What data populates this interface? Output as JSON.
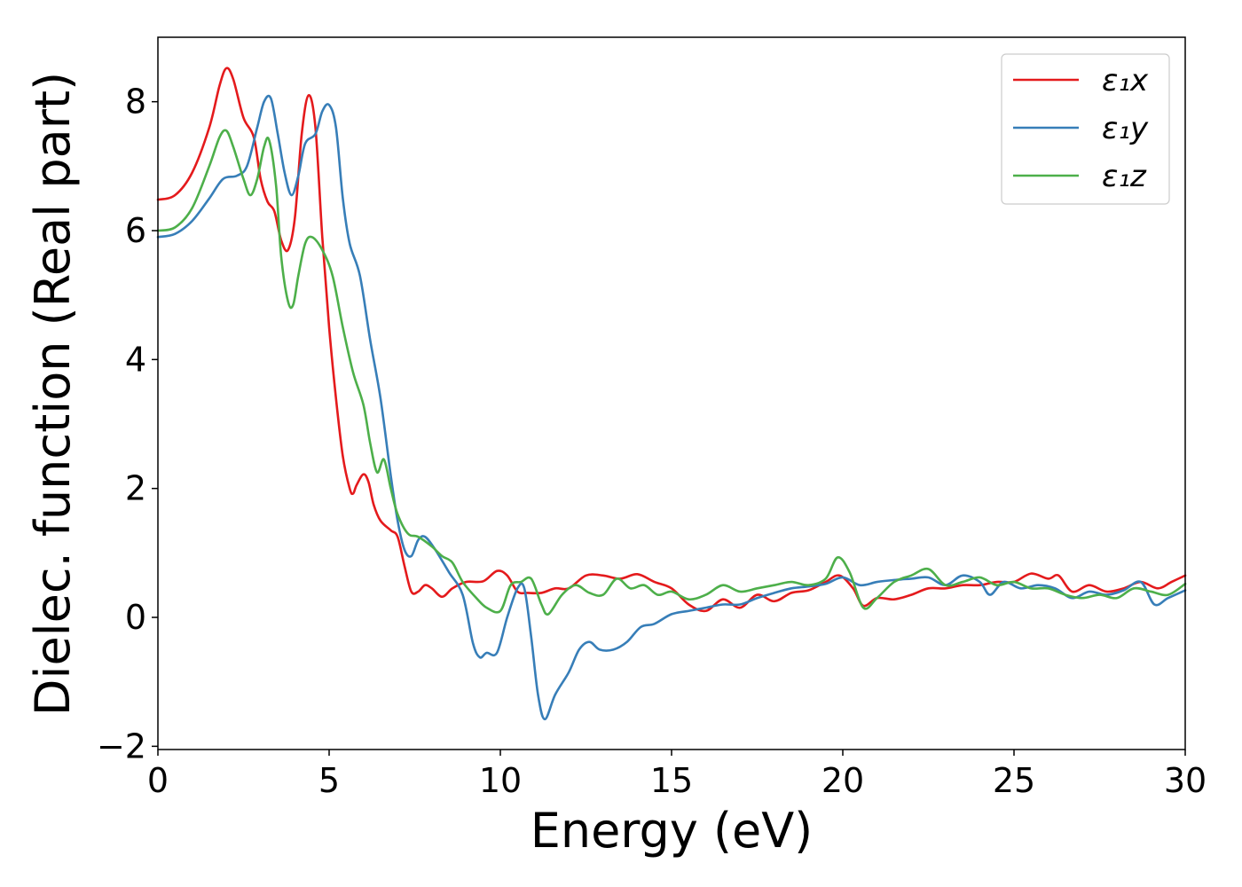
{
  "chart_data": {
    "type": "line",
    "xlabel": "Energy (eV)",
    "ylabel": "Dielec. function (Real part)",
    "xlim": [
      0,
      30
    ],
    "ylim": [
      -2.05,
      9.0
    ],
    "xticks": [
      0,
      5,
      10,
      15,
      20,
      25,
      30
    ],
    "xtick_labels": [
      "0",
      "5",
      "10",
      "15",
      "20",
      "25",
      "30"
    ],
    "yticks": [
      -2,
      0,
      2,
      4,
      6,
      8
    ],
    "ytick_labels": [
      "−2",
      "0",
      "2",
      "4",
      "6",
      "8"
    ],
    "grid": false,
    "legend_position": "top-right",
    "series": [
      {
        "name": "ε₁x",
        "color": "#e41a1c",
        "points": [
          [
            0,
            6.48
          ],
          [
            0.5,
            6.55
          ],
          [
            1.0,
            6.9
          ],
          [
            1.5,
            7.6
          ],
          [
            1.8,
            8.25
          ],
          [
            2.0,
            8.52
          ],
          [
            2.2,
            8.35
          ],
          [
            2.5,
            7.75
          ],
          [
            2.8,
            7.45
          ],
          [
            3.0,
            6.8
          ],
          [
            3.2,
            6.45
          ],
          [
            3.4,
            6.3
          ],
          [
            3.6,
            5.85
          ],
          [
            3.8,
            5.7
          ],
          [
            4.0,
            6.2
          ],
          [
            4.2,
            7.5
          ],
          [
            4.4,
            8.1
          ],
          [
            4.6,
            7.6
          ],
          [
            4.8,
            5.9
          ],
          [
            5.0,
            4.5
          ],
          [
            5.2,
            3.4
          ],
          [
            5.4,
            2.5
          ],
          [
            5.6,
            2.0
          ],
          [
            5.7,
            1.92
          ],
          [
            5.8,
            2.05
          ],
          [
            6.0,
            2.22
          ],
          [
            6.15,
            2.1
          ],
          [
            6.3,
            1.75
          ],
          [
            6.5,
            1.5
          ],
          [
            6.8,
            1.35
          ],
          [
            7.0,
            1.25
          ],
          [
            7.2,
            0.8
          ],
          [
            7.4,
            0.4
          ],
          [
            7.6,
            0.4
          ],
          [
            7.8,
            0.5
          ],
          [
            8.0,
            0.45
          ],
          [
            8.3,
            0.32
          ],
          [
            8.6,
            0.45
          ],
          [
            9.0,
            0.55
          ],
          [
            9.5,
            0.56
          ],
          [
            9.9,
            0.72
          ],
          [
            10.2,
            0.65
          ],
          [
            10.5,
            0.4
          ],
          [
            10.8,
            0.38
          ],
          [
            11.2,
            0.38
          ],
          [
            11.6,
            0.45
          ],
          [
            12.0,
            0.45
          ],
          [
            12.5,
            0.65
          ],
          [
            13.0,
            0.65
          ],
          [
            13.5,
            0.6
          ],
          [
            14.0,
            0.67
          ],
          [
            14.5,
            0.55
          ],
          [
            15.0,
            0.45
          ],
          [
            15.5,
            0.2
          ],
          [
            16.0,
            0.1
          ],
          [
            16.5,
            0.28
          ],
          [
            17.0,
            0.15
          ],
          [
            17.5,
            0.35
          ],
          [
            18.0,
            0.25
          ],
          [
            18.5,
            0.38
          ],
          [
            19.0,
            0.42
          ],
          [
            19.5,
            0.55
          ],
          [
            19.9,
            0.65
          ],
          [
            20.3,
            0.45
          ],
          [
            20.6,
            0.18
          ],
          [
            21.0,
            0.3
          ],
          [
            21.5,
            0.28
          ],
          [
            22.0,
            0.35
          ],
          [
            22.5,
            0.45
          ],
          [
            23.0,
            0.45
          ],
          [
            23.5,
            0.5
          ],
          [
            24.0,
            0.5
          ],
          [
            24.5,
            0.55
          ],
          [
            25.0,
            0.55
          ],
          [
            25.5,
            0.68
          ],
          [
            26.0,
            0.6
          ],
          [
            26.3,
            0.65
          ],
          [
            26.7,
            0.4
          ],
          [
            27.2,
            0.5
          ],
          [
            27.7,
            0.4
          ],
          [
            28.2,
            0.45
          ],
          [
            28.7,
            0.55
          ],
          [
            29.2,
            0.45
          ],
          [
            29.6,
            0.55
          ],
          [
            30.0,
            0.65
          ]
        ]
      },
      {
        "name": "ε₁y",
        "color": "#377eb8",
        "points": [
          [
            0,
            5.9
          ],
          [
            0.5,
            5.95
          ],
          [
            1.0,
            6.15
          ],
          [
            1.5,
            6.5
          ],
          [
            1.9,
            6.8
          ],
          [
            2.3,
            6.85
          ],
          [
            2.6,
            7.0
          ],
          [
            2.9,
            7.6
          ],
          [
            3.1,
            8.0
          ],
          [
            3.3,
            8.05
          ],
          [
            3.5,
            7.5
          ],
          [
            3.7,
            6.9
          ],
          [
            3.9,
            6.55
          ],
          [
            4.1,
            6.85
          ],
          [
            4.3,
            7.35
          ],
          [
            4.6,
            7.5
          ],
          [
            4.8,
            7.85
          ],
          [
            5.0,
            7.95
          ],
          [
            5.2,
            7.6
          ],
          [
            5.4,
            6.5
          ],
          [
            5.6,
            5.8
          ],
          [
            5.9,
            5.3
          ],
          [
            6.2,
            4.3
          ],
          [
            6.5,
            3.4
          ],
          [
            6.8,
            2.2
          ],
          [
            7.0,
            1.5
          ],
          [
            7.2,
            1.05
          ],
          [
            7.4,
            0.95
          ],
          [
            7.6,
            1.2
          ],
          [
            7.8,
            1.25
          ],
          [
            8.1,
            1.05
          ],
          [
            8.5,
            0.7
          ],
          [
            8.9,
            0.35
          ],
          [
            9.2,
            -0.4
          ],
          [
            9.4,
            -0.62
          ],
          [
            9.6,
            -0.55
          ],
          [
            9.9,
            -0.55
          ],
          [
            10.2,
            0.0
          ],
          [
            10.5,
            0.45
          ],
          [
            10.7,
            0.45
          ],
          [
            10.9,
            -0.3
          ],
          [
            11.1,
            -1.2
          ],
          [
            11.3,
            -1.58
          ],
          [
            11.6,
            -1.2
          ],
          [
            12.0,
            -0.85
          ],
          [
            12.3,
            -0.5
          ],
          [
            12.6,
            -0.38
          ],
          [
            12.9,
            -0.5
          ],
          [
            13.3,
            -0.5
          ],
          [
            13.7,
            -0.38
          ],
          [
            14.1,
            -0.15
          ],
          [
            14.5,
            -0.1
          ],
          [
            15.0,
            0.05
          ],
          [
            15.5,
            0.1
          ],
          [
            16.0,
            0.15
          ],
          [
            16.5,
            0.2
          ],
          [
            17.0,
            0.2
          ],
          [
            17.5,
            0.3
          ],
          [
            18.0,
            0.38
          ],
          [
            18.5,
            0.45
          ],
          [
            19.0,
            0.48
          ],
          [
            19.5,
            0.52
          ],
          [
            20.0,
            0.62
          ],
          [
            20.5,
            0.5
          ],
          [
            21.0,
            0.55
          ],
          [
            21.5,
            0.58
          ],
          [
            22.0,
            0.6
          ],
          [
            22.5,
            0.62
          ],
          [
            23.0,
            0.5
          ],
          [
            23.5,
            0.65
          ],
          [
            24.0,
            0.55
          ],
          [
            24.3,
            0.35
          ],
          [
            24.7,
            0.55
          ],
          [
            25.2,
            0.45
          ],
          [
            25.7,
            0.5
          ],
          [
            26.2,
            0.45
          ],
          [
            26.7,
            0.3
          ],
          [
            27.2,
            0.4
          ],
          [
            27.7,
            0.35
          ],
          [
            28.2,
            0.42
          ],
          [
            28.7,
            0.55
          ],
          [
            29.1,
            0.2
          ],
          [
            29.5,
            0.3
          ],
          [
            30.0,
            0.42
          ]
        ]
      },
      {
        "name": "ε₁z",
        "color": "#4daf4a",
        "points": [
          [
            0,
            6.0
          ],
          [
            0.5,
            6.05
          ],
          [
            1.0,
            6.35
          ],
          [
            1.5,
            7.0
          ],
          [
            1.8,
            7.45
          ],
          [
            2.0,
            7.55
          ],
          [
            2.2,
            7.3
          ],
          [
            2.5,
            6.8
          ],
          [
            2.7,
            6.55
          ],
          [
            2.9,
            6.8
          ],
          [
            3.1,
            7.3
          ],
          [
            3.25,
            7.4
          ],
          [
            3.45,
            6.7
          ],
          [
            3.6,
            5.6
          ],
          [
            3.8,
            4.9
          ],
          [
            3.95,
            4.85
          ],
          [
            4.1,
            5.3
          ],
          [
            4.3,
            5.8
          ],
          [
            4.5,
            5.9
          ],
          [
            4.8,
            5.7
          ],
          [
            5.1,
            5.3
          ],
          [
            5.4,
            4.5
          ],
          [
            5.7,
            3.8
          ],
          [
            6.0,
            3.3
          ],
          [
            6.2,
            2.7
          ],
          [
            6.4,
            2.25
          ],
          [
            6.6,
            2.45
          ],
          [
            6.8,
            2.0
          ],
          [
            7.0,
            1.6
          ],
          [
            7.3,
            1.3
          ],
          [
            7.6,
            1.25
          ],
          [
            8.0,
            1.1
          ],
          [
            8.3,
            0.95
          ],
          [
            8.6,
            0.85
          ],
          [
            8.9,
            0.55
          ],
          [
            9.3,
            0.3
          ],
          [
            9.6,
            0.15
          ],
          [
            10.0,
            0.1
          ],
          [
            10.3,
            0.5
          ],
          [
            10.6,
            0.55
          ],
          [
            10.9,
            0.6
          ],
          [
            11.2,
            0.2
          ],
          [
            11.4,
            0.05
          ],
          [
            11.8,
            0.35
          ],
          [
            12.2,
            0.5
          ],
          [
            12.6,
            0.38
          ],
          [
            13.0,
            0.35
          ],
          [
            13.4,
            0.6
          ],
          [
            13.8,
            0.45
          ],
          [
            14.2,
            0.5
          ],
          [
            14.6,
            0.35
          ],
          [
            15.0,
            0.4
          ],
          [
            15.5,
            0.28
          ],
          [
            16.0,
            0.35
          ],
          [
            16.5,
            0.5
          ],
          [
            17.0,
            0.4
          ],
          [
            17.5,
            0.45
          ],
          [
            18.0,
            0.5
          ],
          [
            18.5,
            0.55
          ],
          [
            19.0,
            0.5
          ],
          [
            19.5,
            0.6
          ],
          [
            19.85,
            0.93
          ],
          [
            20.2,
            0.7
          ],
          [
            20.6,
            0.15
          ],
          [
            21.0,
            0.3
          ],
          [
            21.5,
            0.55
          ],
          [
            22.0,
            0.65
          ],
          [
            22.5,
            0.75
          ],
          [
            23.0,
            0.5
          ],
          [
            23.5,
            0.55
          ],
          [
            24.0,
            0.62
          ],
          [
            24.5,
            0.5
          ],
          [
            25.0,
            0.55
          ],
          [
            25.5,
            0.45
          ],
          [
            26.0,
            0.45
          ],
          [
            26.5,
            0.35
          ],
          [
            27.0,
            0.3
          ],
          [
            27.5,
            0.35
          ],
          [
            28.0,
            0.3
          ],
          [
            28.5,
            0.45
          ],
          [
            29.0,
            0.4
          ],
          [
            29.5,
            0.35
          ],
          [
            30.0,
            0.52
          ]
        ]
      }
    ]
  }
}
